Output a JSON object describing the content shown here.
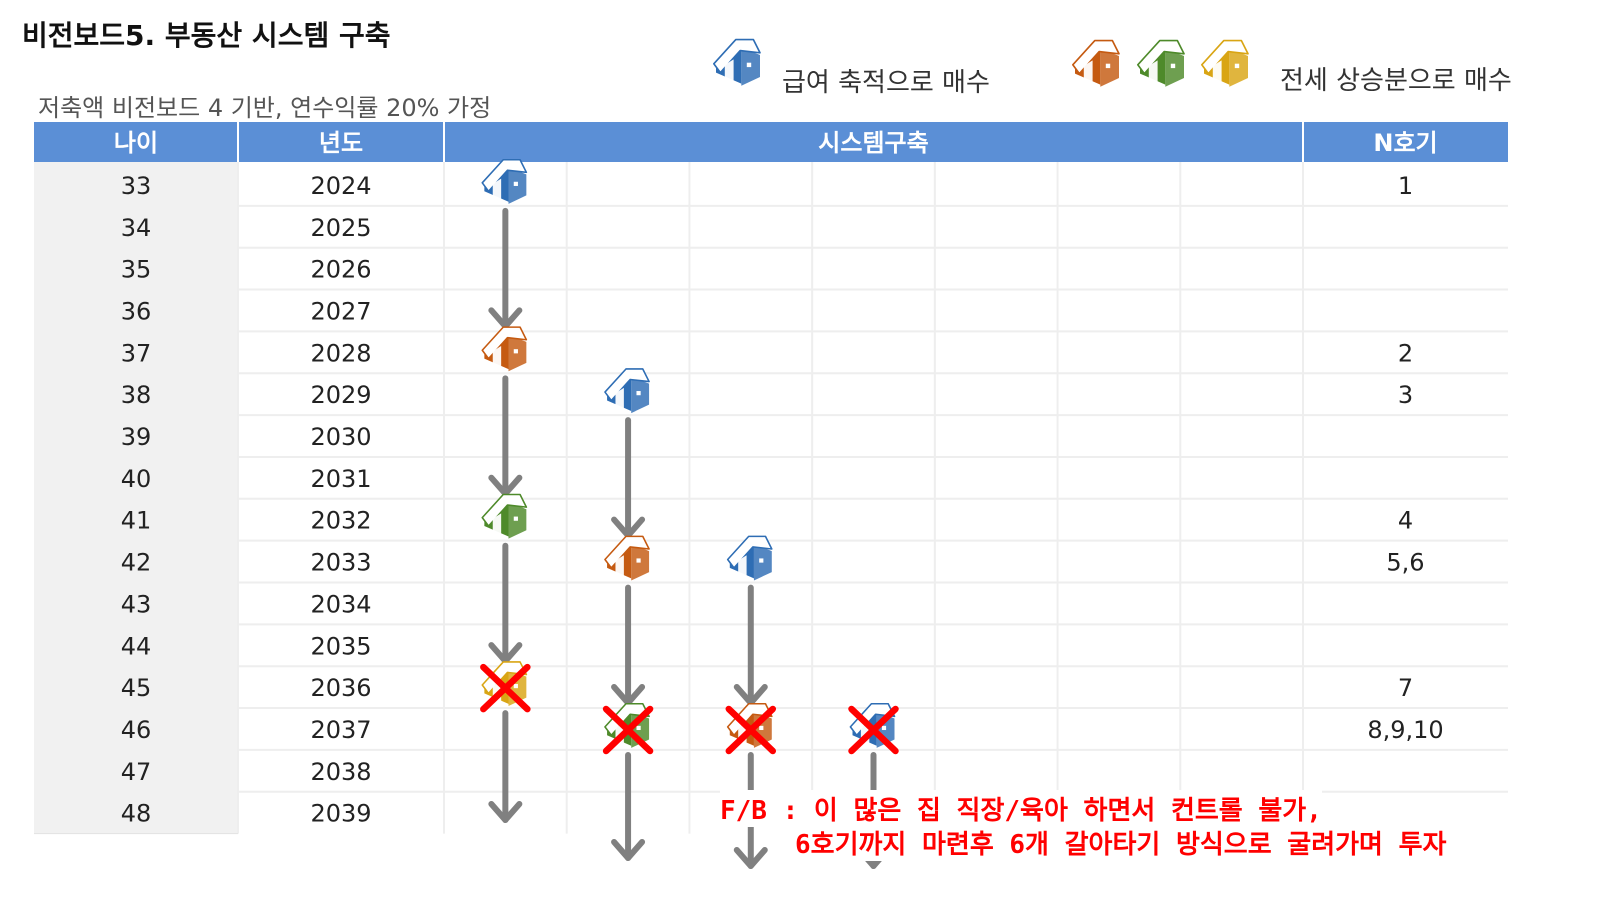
{
  "title": "비전보드5. 부동산 시스템 구축",
  "subtitle": "저축액 비전보드 4 기반, 연수익률 20% 가정",
  "legend": {
    "salary_label": "급여 축적으로 매수",
    "lease_label": "전세 상승분으로 매수"
  },
  "table": {
    "headers": [
      "나이",
      "년도",
      "시스템구축",
      "N호기"
    ],
    "rows": [
      {
        "age": "33",
        "year": "2024",
        "n": "1"
      },
      {
        "age": "34",
        "year": "2025",
        "n": ""
      },
      {
        "age": "35",
        "year": "2026",
        "n": ""
      },
      {
        "age": "36",
        "year": "2027",
        "n": ""
      },
      {
        "age": "37",
        "year": "2028",
        "n": "2"
      },
      {
        "age": "38",
        "year": "2029",
        "n": "3"
      },
      {
        "age": "39",
        "year": "2030",
        "n": ""
      },
      {
        "age": "40",
        "year": "2031",
        "n": ""
      },
      {
        "age": "41",
        "year": "2032",
        "n": "4"
      },
      {
        "age": "42",
        "year": "2033",
        "n": "5,6"
      },
      {
        "age": "43",
        "year": "2034",
        "n": ""
      },
      {
        "age": "44",
        "year": "2035",
        "n": ""
      },
      {
        "age": "45",
        "year": "2036",
        "n": "7"
      },
      {
        "age": "46",
        "year": "2037",
        "n": "8,9,10"
      },
      {
        "age": "47",
        "year": "2038",
        "n": ""
      },
      {
        "age": "48",
        "year": "2039",
        "n": ""
      }
    ]
  },
  "houses": [
    {
      "col": 0,
      "row": 0,
      "color": "blue",
      "crossed": false
    },
    {
      "col": 0,
      "row": 4,
      "color": "orange",
      "crossed": false
    },
    {
      "col": 1,
      "row": 5,
      "color": "blue",
      "crossed": false
    },
    {
      "col": 0,
      "row": 8,
      "color": "green",
      "crossed": false
    },
    {
      "col": 1,
      "row": 9,
      "color": "orange",
      "crossed": false
    },
    {
      "col": 2,
      "row": 9,
      "color": "blue",
      "crossed": false
    },
    {
      "col": 0,
      "row": 12,
      "color": "yellow",
      "crossed": true
    },
    {
      "col": 1,
      "row": 13,
      "color": "green",
      "crossed": true
    },
    {
      "col": 2,
      "row": 13,
      "color": "orange",
      "crossed": true
    },
    {
      "col": 3,
      "row": 13,
      "color": "blue",
      "crossed": true
    }
  ],
  "colors": {
    "header_bg": "#5b8fd6",
    "blue": "#2e6db4",
    "orange": "#c55a11",
    "green": "#4e8a2a",
    "yellow": "#d9a514",
    "cross": "#ff0000",
    "arrow": "#808080"
  },
  "feedback": {
    "line1": "F/B : 이 많은 집 직장/육아 하면서 컨트롤 불가,",
    "line2": "6호기까지 마련후 6개 갈아타기 방식으로 굴려가며 투자"
  }
}
